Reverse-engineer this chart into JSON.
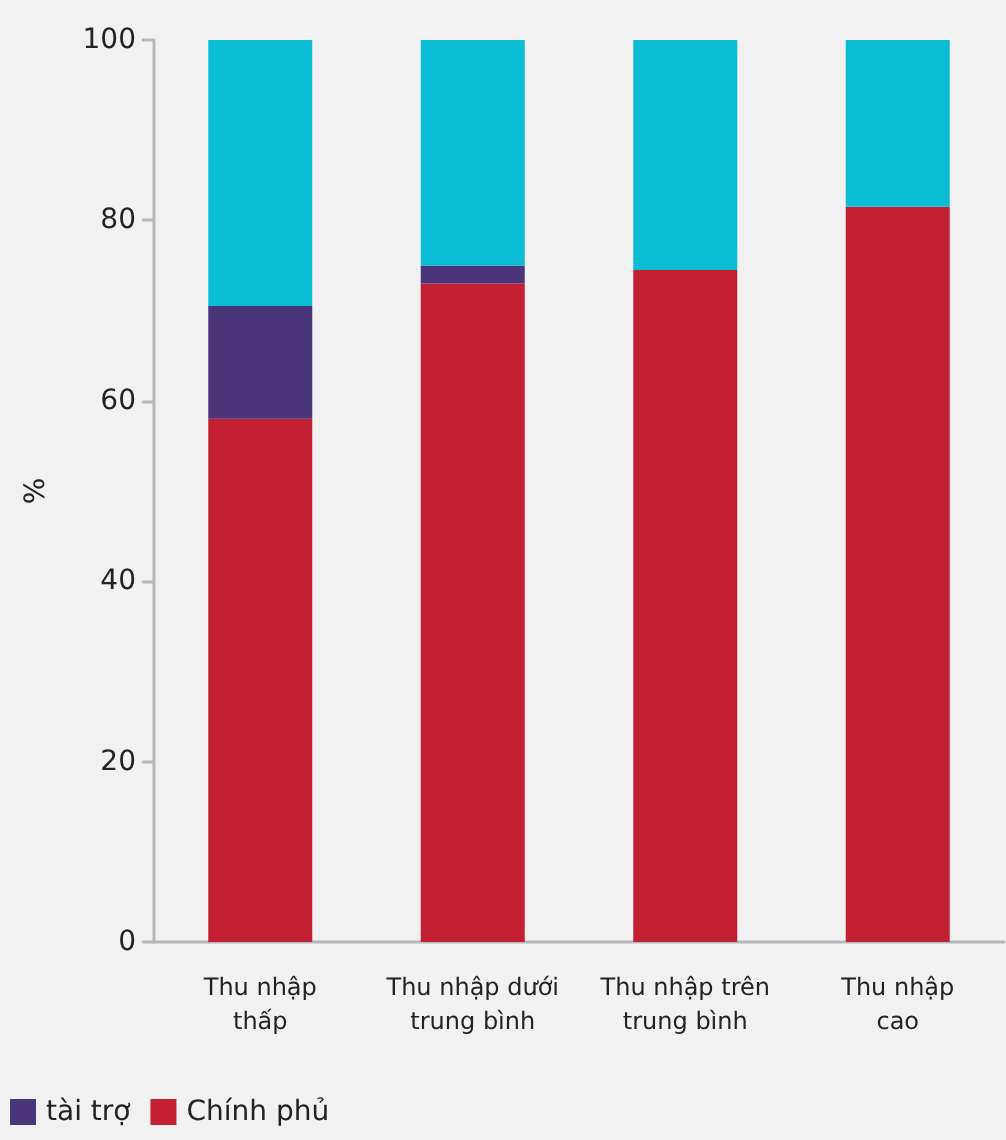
{
  "chart_data": {
    "type": "bar",
    "stacked": true,
    "ylabel": "%",
    "categories": [
      "Thu nhập\nthấp",
      "Thu nhập dưới\ntrung bình",
      "Thu nhập trên\ntrung bình",
      "Thu nhập\ncao"
    ],
    "series": [
      {
        "name": "Chính phủ",
        "color": "#c22032",
        "values": [
          58,
          73,
          74.5,
          81.5
        ]
      },
      {
        "name": "tài trợ",
        "color": "#4a347a",
        "values": [
          12.5,
          2,
          null,
          null
        ]
      },
      {
        "color": "#0abdd4",
        "values": [
          29.5,
          25,
          25.5,
          18.5
        ]
      }
    ],
    "ylim": [
      0,
      100
    ],
    "yticks": [
      0,
      20,
      40,
      60,
      80,
      100
    ],
    "grid": false,
    "legend": "bottom left"
  }
}
